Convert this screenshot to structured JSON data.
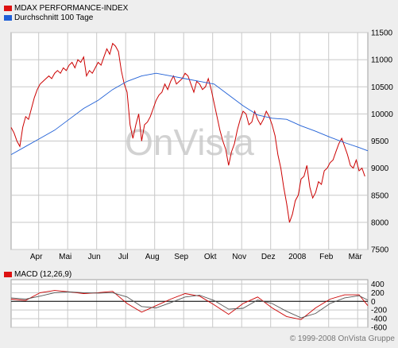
{
  "colors": {
    "background": "#eeeeee",
    "plot_background": "#ffffff",
    "grid": "#c8c8c8",
    "index_line": "#cc0000",
    "average_line": "#1f5fd6",
    "macd_signal": "#555555",
    "watermark": "#c8c8c8"
  },
  "main_legend": [
    {
      "label": "MDAX PERFORMANCE-INDEX",
      "color": "#dd1111",
      "icon": "red-swatch-icon"
    },
    {
      "label": "Durchschnitt 100 Tage",
      "color": "#1f5fd6",
      "icon": "blue-swatch-icon"
    }
  ],
  "macd_legend": {
    "label": "MACD (12,26,9)",
    "color": "#dd1111",
    "icon": "red-swatch-icon"
  },
  "watermark": "OnVista",
  "copyright": "© 1999-2008 OnVista Gruppe",
  "chart_data": [
    {
      "type": "line",
      "title": "",
      "xlabel": "",
      "ylabel": "",
      "x_ticks": [
        "Apr",
        "Mai",
        "Jun",
        "Jul",
        "Aug",
        "Sep",
        "Okt",
        "Nov",
        "Dez",
        "2008",
        "Feb",
        "Mär"
      ],
      "y_ticks": [
        7500,
        8000,
        8500,
        9000,
        9500,
        10000,
        10500,
        11000,
        11500
      ],
      "ylim": [
        7500,
        11500
      ],
      "xlim": [
        0,
        12.3
      ],
      "grid": true,
      "legend": "top-left",
      "series": [
        {
          "name": "MDAX PERFORMANCE-INDEX",
          "color": "#cc0000",
          "x": [
            0.0,
            0.1,
            0.2,
            0.3,
            0.4,
            0.5,
            0.6,
            0.7,
            0.8,
            0.9,
            1.0,
            1.1,
            1.2,
            1.3,
            1.4,
            1.5,
            1.6,
            1.7,
            1.8,
            1.9,
            2.0,
            2.1,
            2.2,
            2.3,
            2.4,
            2.5,
            2.6,
            2.7,
            2.8,
            2.9,
            3.0,
            3.1,
            3.2,
            3.3,
            3.4,
            3.5,
            3.6,
            3.7,
            3.8,
            3.9,
            4.0,
            4.1,
            4.2,
            4.3,
            4.4,
            4.5,
            4.6,
            4.7,
            4.8,
            4.9,
            5.0,
            5.1,
            5.2,
            5.3,
            5.4,
            5.5,
            5.6,
            5.7,
            5.8,
            5.9,
            6.0,
            6.1,
            6.2,
            6.3,
            6.4,
            6.5,
            6.6,
            6.7,
            6.8,
            6.9,
            7.0,
            7.1,
            7.2,
            7.3,
            7.4,
            7.5,
            7.6,
            7.7,
            7.8,
            7.9,
            8.0,
            8.1,
            8.2,
            8.3,
            8.4,
            8.5,
            8.6,
            8.7,
            8.8,
            8.9,
            9.0,
            9.1,
            9.2,
            9.3,
            9.4,
            9.5,
            9.6,
            9.7,
            9.8,
            9.9,
            10.0,
            10.1,
            10.2,
            10.3,
            10.4,
            10.5,
            10.6,
            10.7,
            10.8,
            10.9,
            11.0,
            11.1,
            11.2,
            11.3,
            11.4,
            11.5,
            11.6,
            11.7,
            11.8,
            11.9,
            12.0,
            12.1,
            12.2
          ],
          "values": [
            9750,
            9650,
            9500,
            9400,
            9750,
            9950,
            9900,
            10100,
            10300,
            10450,
            10550,
            10600,
            10650,
            10700,
            10650,
            10750,
            10800,
            10750,
            10850,
            10800,
            10900,
            10950,
            10850,
            11000,
            10950,
            11050,
            10700,
            10800,
            10750,
            10850,
            10950,
            10900,
            11050,
            11200,
            11100,
            11300,
            11250,
            11150,
            10800,
            10550,
            10400,
            9800,
            9550,
            9800,
            10000,
            9500,
            9800,
            9850,
            9950,
            10100,
            10250,
            10350,
            10400,
            10550,
            10450,
            10600,
            10700,
            10550,
            10600,
            10650,
            10750,
            10700,
            10550,
            10400,
            10600,
            10550,
            10450,
            10500,
            10650,
            10450,
            10200,
            9950,
            9700,
            9500,
            9350,
            9050,
            9300,
            9450,
            9700,
            9900,
            10050,
            10000,
            9800,
            9850,
            10050,
            9900,
            9800,
            9900,
            10050,
            9950,
            9800,
            9600,
            9250,
            9000,
            8650,
            8350,
            8000,
            8150,
            8400,
            8500,
            8800,
            8850,
            9050,
            8650,
            8450,
            8550,
            8750,
            8700,
            8950,
            9000,
            9100,
            9150,
            9300,
            9450,
            9550,
            9400,
            9250,
            9050,
            9000,
            9150,
            8950,
            9000,
            8850
          ]
        },
        {
          "name": "Durchschnitt 100 Tage",
          "color": "#1f5fd6",
          "x": [
            0.0,
            0.5,
            1.0,
            1.5,
            2.0,
            2.5,
            3.0,
            3.5,
            4.0,
            4.5,
            5.0,
            5.5,
            6.0,
            6.5,
            7.0,
            7.5,
            8.0,
            8.5,
            9.0,
            9.5,
            10.0,
            10.5,
            11.0,
            11.5,
            12.0,
            12.3
          ],
          "values": [
            9250,
            9400,
            9550,
            9700,
            9900,
            10100,
            10250,
            10450,
            10600,
            10700,
            10750,
            10700,
            10650,
            10600,
            10550,
            10350,
            10150,
            9980,
            9920,
            9900,
            9780,
            9680,
            9570,
            9470,
            9380,
            9320
          ]
        }
      ]
    },
    {
      "type": "line",
      "title": "",
      "xlabel": "",
      "ylabel": "",
      "x_ticks": [],
      "y_ticks": [
        -600,
        -400,
        -200,
        0,
        200,
        400
      ],
      "ylim": [
        -600,
        500
      ],
      "xlim": [
        0,
        12.3
      ],
      "grid": true,
      "legend": "top-left",
      "series": [
        {
          "name": "MACD (12,26,9)",
          "color": "#cc0000",
          "x": [
            0.0,
            0.5,
            1.0,
            1.5,
            2.0,
            2.5,
            3.0,
            3.5,
            4.0,
            4.5,
            5.0,
            5.5,
            6.0,
            6.5,
            7.0,
            7.5,
            8.0,
            8.5,
            9.0,
            9.5,
            10.0,
            10.5,
            11.0,
            11.5,
            12.0,
            12.3
          ],
          "values": [
            50,
            20,
            200,
            250,
            220,
            180,
            200,
            230,
            -50,
            -250,
            -100,
            50,
            180,
            120,
            -80,
            -300,
            -50,
            100,
            -150,
            -350,
            -420,
            -150,
            50,
            150,
            150,
            -100
          ]
        },
        {
          "name": "",
          "color": "#555555",
          "x": [
            0.0,
            0.5,
            1.0,
            1.5,
            2.0,
            2.5,
            3.0,
            3.5,
            4.0,
            4.5,
            5.0,
            5.5,
            6.0,
            6.5,
            7.0,
            7.5,
            8.0,
            8.5,
            9.0,
            9.5,
            10.0,
            10.5,
            11.0,
            11.5,
            12.0,
            12.3
          ],
          "values": [
            80,
            50,
            120,
            200,
            220,
            200,
            190,
            200,
            100,
            -120,
            -150,
            -30,
            100,
            140,
            20,
            -180,
            -160,
            30,
            -50,
            -230,
            -380,
            -280,
            -50,
            80,
            130,
            30
          ]
        }
      ]
    }
  ]
}
